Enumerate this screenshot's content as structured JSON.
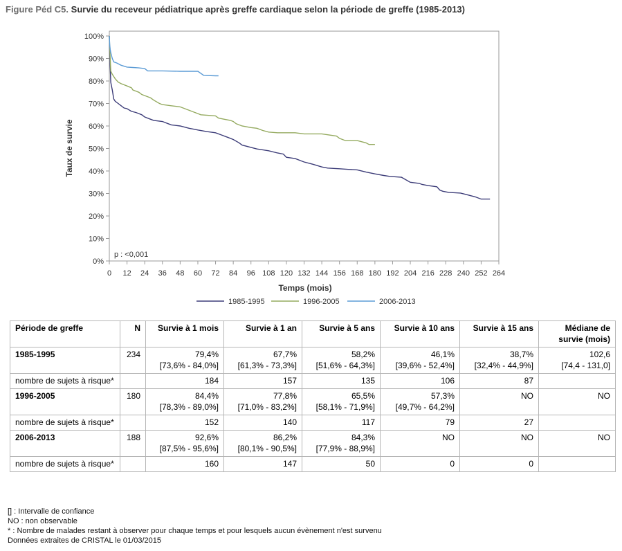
{
  "title": {
    "prefix": "Figure Péd C5.",
    "text": "Survie du receveur pédiatrique après greffe cardiaque selon la période de greffe (1985-2013)"
  },
  "chart_data": {
    "type": "line",
    "title": "",
    "xlabel": "Temps (mois)",
    "ylabel": "Taux de survie",
    "xlim": [
      0,
      264
    ],
    "ylim": [
      0,
      100
    ],
    "x_ticks": [
      0,
      12,
      24,
      36,
      48,
      60,
      72,
      84,
      96,
      108,
      120,
      132,
      144,
      156,
      168,
      180,
      192,
      204,
      216,
      228,
      240,
      252,
      264
    ],
    "y_ticks": [
      0,
      10,
      20,
      30,
      40,
      50,
      60,
      70,
      80,
      90,
      100
    ],
    "y_tick_labels": [
      "0%",
      "10%",
      "20%",
      "30%",
      "40%",
      "50%",
      "60%",
      "70%",
      "80%",
      "90%",
      "100%"
    ],
    "grid": false,
    "legend_position": "bottom",
    "annotation": "p : <0,001",
    "series": [
      {
        "name": "1985-1995",
        "color": "#3c3c78",
        "points": [
          [
            0,
            100
          ],
          [
            0.3,
            92
          ],
          [
            0.6,
            86
          ],
          [
            1,
            79.4
          ],
          [
            2,
            76
          ],
          [
            3,
            72
          ],
          [
            4,
            71
          ],
          [
            6,
            70
          ],
          [
            8,
            69
          ],
          [
            10,
            68
          ],
          [
            12,
            67.7
          ],
          [
            15,
            66.5
          ],
          [
            18,
            66
          ],
          [
            20,
            65.5
          ],
          [
            22,
            65
          ],
          [
            24,
            64
          ],
          [
            28,
            63
          ],
          [
            30,
            62.5
          ],
          [
            36,
            62
          ],
          [
            40,
            61
          ],
          [
            42,
            60.5
          ],
          [
            48,
            60
          ],
          [
            54,
            59
          ],
          [
            58,
            58.5
          ],
          [
            60,
            58.2
          ],
          [
            66,
            57.5
          ],
          [
            72,
            57
          ],
          [
            76,
            56
          ],
          [
            80,
            55
          ],
          [
            84,
            54
          ],
          [
            88,
            52.5
          ],
          [
            90,
            51.5
          ],
          [
            96,
            50.5
          ],
          [
            100,
            49.8
          ],
          [
            108,
            49
          ],
          [
            114,
            48
          ],
          [
            118,
            47.5
          ],
          [
            120,
            46.1
          ],
          [
            126,
            45.5
          ],
          [
            130,
            44.5
          ],
          [
            132,
            44
          ],
          [
            138,
            43
          ],
          [
            144,
            41.8
          ],
          [
            148,
            41.3
          ],
          [
            156,
            41
          ],
          [
            162,
            40.7
          ],
          [
            168,
            40.5
          ],
          [
            174,
            39.5
          ],
          [
            180,
            38.7
          ],
          [
            186,
            38
          ],
          [
            190,
            37.6
          ],
          [
            198,
            37.2
          ],
          [
            204,
            35
          ],
          [
            210,
            34.5
          ],
          [
            212,
            34
          ],
          [
            216,
            33.5
          ],
          [
            222,
            33
          ],
          [
            224,
            31.5
          ],
          [
            226,
            31
          ],
          [
            230,
            30.5
          ],
          [
            238,
            30.2
          ],
          [
            242,
            29.5
          ],
          [
            248,
            28.5
          ],
          [
            252,
            27.5
          ],
          [
            258,
            27.5
          ]
        ]
      },
      {
        "name": "1996-2005",
        "color": "#94aa5f",
        "points": [
          [
            0,
            100
          ],
          [
            0.3,
            95
          ],
          [
            0.6,
            90
          ],
          [
            1,
            84.4
          ],
          [
            2,
            83
          ],
          [
            3,
            82
          ],
          [
            4,
            81
          ],
          [
            6,
            79.5
          ],
          [
            8,
            78.8
          ],
          [
            10,
            78.3
          ],
          [
            12,
            77.8
          ],
          [
            15,
            77
          ],
          [
            16,
            76
          ],
          [
            18,
            75.5
          ],
          [
            20,
            75
          ],
          [
            22,
            74
          ],
          [
            24,
            73.5
          ],
          [
            28,
            72.5
          ],
          [
            30,
            71.5
          ],
          [
            34,
            70
          ],
          [
            36,
            69.5
          ],
          [
            42,
            69
          ],
          [
            48,
            68.5
          ],
          [
            52,
            67.5
          ],
          [
            56,
            66.5
          ],
          [
            60,
            65.5
          ],
          [
            62,
            65
          ],
          [
            72,
            64.5
          ],
          [
            74,
            63.5
          ],
          [
            78,
            63
          ],
          [
            82,
            62.5
          ],
          [
            84,
            62
          ],
          [
            86,
            61
          ],
          [
            90,
            60
          ],
          [
            96,
            59.3
          ],
          [
            100,
            59
          ],
          [
            104,
            58
          ],
          [
            108,
            57.3
          ],
          [
            114,
            57
          ],
          [
            126,
            57
          ],
          [
            132,
            56.5
          ],
          [
            144,
            56.5
          ],
          [
            154,
            55.5
          ],
          [
            156,
            54.5
          ],
          [
            160,
            53.5
          ],
          [
            168,
            53.5
          ],
          [
            174,
            52.5
          ],
          [
            176,
            51.8
          ],
          [
            180,
            51.8
          ]
        ]
      },
      {
        "name": "2006-2013",
        "color": "#5b9bd5",
        "points": [
          [
            0,
            100
          ],
          [
            0.3,
            96
          ],
          [
            0.6,
            94
          ],
          [
            1,
            92.6
          ],
          [
            2,
            90
          ],
          [
            3,
            88.5
          ],
          [
            5,
            88
          ],
          [
            8,
            87
          ],
          [
            12,
            86.2
          ],
          [
            16,
            86
          ],
          [
            20,
            85.8
          ],
          [
            24,
            85.5
          ],
          [
            26,
            84.5
          ],
          [
            36,
            84.5
          ],
          [
            48,
            84.3
          ],
          [
            60,
            84.3
          ],
          [
            64,
            82.5
          ],
          [
            72,
            82.3
          ],
          [
            74,
            82.3
          ]
        ]
      }
    ]
  },
  "table": {
    "headers": [
      "Période de greffe",
      "N",
      "Survie à 1 mois",
      "Survie à 1 an",
      "Survie à 5 ans",
      "Survie à 10 ans",
      "Survie à 15 ans",
      "Médiane de survie (mois)"
    ],
    "rows": [
      {
        "period": "1985-1995",
        "n": "234",
        "cells": [
          [
            "79,4%",
            "[73,6% - 84,0%]"
          ],
          [
            "67,7%",
            "[61,3% - 73,3%]"
          ],
          [
            "58,2%",
            "[51,6% - 64,3%]"
          ],
          [
            "46,1%",
            "[39,6% - 52,4%]"
          ],
          [
            "38,7%",
            "[32,4% - 44,9%]"
          ],
          [
            "102,6",
            "[74,4 - 131,0]"
          ]
        ],
        "risk_label": "nombre de sujets à risque*",
        "risk": [
          "184",
          "157",
          "135",
          "106",
          "87",
          ""
        ]
      },
      {
        "period": "1996-2005",
        "n": "180",
        "cells": [
          [
            "84,4%",
            "[78,3% - 89,0%]"
          ],
          [
            "77,8%",
            "[71,0% - 83,2%]"
          ],
          [
            "65,5%",
            "[58,1% - 71,9%]"
          ],
          [
            "57,3%",
            "[49,7% - 64,2%]"
          ],
          [
            "NO",
            ""
          ],
          [
            "NO",
            ""
          ]
        ],
        "risk_label": "nombre de sujets à risque*",
        "risk": [
          "152",
          "140",
          "117",
          "79",
          "27",
          ""
        ]
      },
      {
        "period": "2006-2013",
        "n": "188",
        "cells": [
          [
            "92,6%",
            "[87,5% - 95,6%]"
          ],
          [
            "86,2%",
            "[80,1% - 90,5%]"
          ],
          [
            "84,3%",
            "[77,9% - 88,9%]"
          ],
          [
            "NO",
            ""
          ],
          [
            "NO",
            ""
          ],
          [
            "NO",
            ""
          ]
        ],
        "risk_label": "nombre de sujets à risque*",
        "risk": [
          "160",
          "147",
          "50",
          "0",
          "0",
          ""
        ]
      }
    ]
  },
  "notes": [
    "[] : Intervalle de confiance",
    "NO : non observable",
    "* : Nombre de malades restant à observer pour chaque temps et pour lesquels aucun évènement n'est survenu",
    "Données extraites de CRISTAL le 01/03/2015"
  ]
}
